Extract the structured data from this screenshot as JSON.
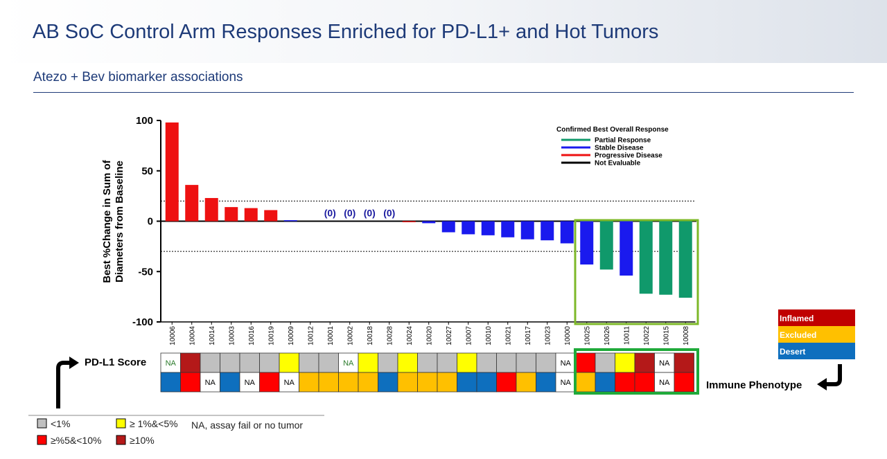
{
  "title": "AB SoC Control Arm Responses Enriched for PD-L1+ and Hot Tumors",
  "subtitle": "Atezo + Bev biomarker associations",
  "colors": {
    "partial": "#10996b",
    "stable": "#1a1aee",
    "progressive": "#ee1111",
    "not_evaluable": "#000000",
    "pdl1_low": "#c0c0c0",
    "pdl1_mid": "#ffff00",
    "pdl1_5to10": "#ff0000",
    "pdl1_high": "#b41919",
    "inflamed": "#c00000",
    "excluded": "#ffc000",
    "desert": "#0e6fbe",
    "highlight": "#7db828",
    "highlight_box2": "#1faa3a"
  },
  "chart_data": {
    "type": "bar",
    "ylabel_line1": "Best  %Change in Sum of",
    "ylabel_line2": "Diameters from Baseline",
    "ylim": [
      -100,
      100
    ],
    "yticks": [
      "100",
      "50",
      "0",
      "-50",
      "-100"
    ],
    "reference_lines": [
      20,
      -30
    ],
    "categories": [
      "10006",
      "10004",
      "10014",
      "10003",
      "10016",
      "10019",
      "10009",
      "10012",
      "10001",
      "10002",
      "10018",
      "10028",
      "10024",
      "10020",
      "10027",
      "10007",
      "10010",
      "10021",
      "10017",
      "10023",
      "10000",
      "10025",
      "10026",
      "10011",
      "10022",
      "10015",
      "10008"
    ],
    "values": [
      98,
      36,
      23,
      14,
      13,
      11,
      1,
      0.5,
      0,
      0,
      0,
      0,
      -1,
      -2,
      -11,
      -13,
      -14,
      -16,
      -18,
      -19,
      -22,
      -43,
      -48,
      -54,
      -72,
      -73,
      -76
    ],
    "response": [
      "PD",
      "PD",
      "PD",
      "PD",
      "PD",
      "PD",
      "SD",
      "NE",
      "SD",
      "SD",
      "SD",
      "SD",
      "PD",
      "SD",
      "SD",
      "SD",
      "SD",
      "SD",
      "SD",
      "SD",
      "SD",
      "SD",
      "PR",
      "SD",
      "PR",
      "PR",
      "PR"
    ],
    "zero_labels": [
      "(0)",
      "(0)",
      "(0)",
      "(0)"
    ],
    "legend": {
      "title": "Confirmed Best Overall Response",
      "entries": [
        "Partial Response",
        "Stable Disease",
        "Progressive Disease",
        "Not Evaluable"
      ]
    },
    "pdl1_row": [
      "NA",
      "≥10%",
      "<1%",
      "<1%",
      "<1%",
      "<1%",
      "≥1%&<5%",
      "<1%",
      "<1%",
      "NA",
      "≥1%&<5%",
      "<1%",
      "≥1%&<5%",
      "<1%",
      "<1%",
      "≥1%&<5%",
      "<1%",
      "<1%",
      "<1%",
      "<1%",
      "NA",
      "≥%5&<10%",
      "<1%",
      "≥1%&<5%",
      "≥10%",
      "NA",
      "≥10%"
    ],
    "immune_row": [
      "Desert",
      "≥%5&<10%",
      "NA",
      "Desert",
      "NA",
      "≥%5&<10%",
      "NA",
      "Excluded",
      "Excluded",
      "Excluded",
      "Excluded",
      "Desert",
      "Excluded",
      "Excluded",
      "Excluded",
      "Desert",
      "Desert",
      "≥%5&<10%",
      "Excluded",
      "Desert",
      "NA",
      "Excluded",
      "Desert",
      "≥%5&<10%",
      "≥%5&<10%",
      "NA",
      "≥%5&<10%"
    ]
  },
  "pdl1_label": "PD-L1 Score",
  "immune_label": "Immune Phenotype",
  "na_text": "NA",
  "phenotype_legend": [
    "Inflamed",
    "Excluded",
    "Desert"
  ],
  "score_legend": {
    "lt1": "<1%",
    "mid": "≥ 1%&<5%",
    "na_note": "NA, assay fail or no tumor",
    "five_ten": "≥%5&<10%",
    "ge10": "≥10%"
  }
}
